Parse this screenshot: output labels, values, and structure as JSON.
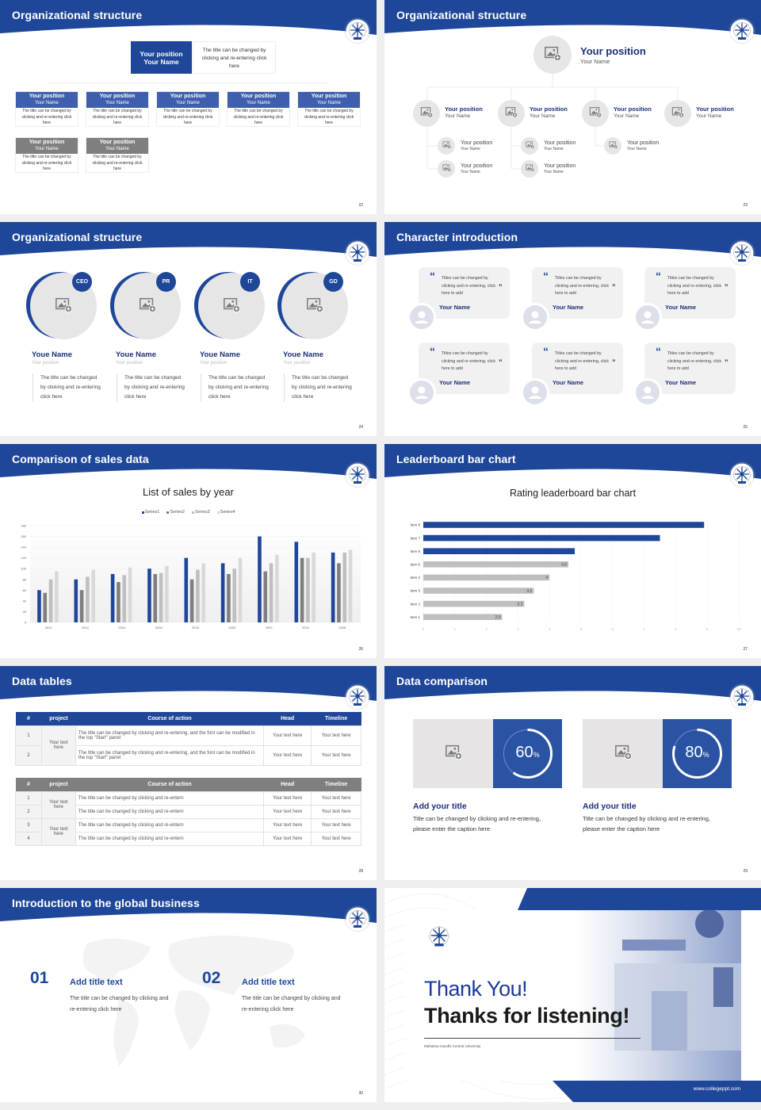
{
  "colors": {
    "brand": "#1f4799",
    "navy_text": "#1b2f7a",
    "gray_header": "#7f7f7f",
    "placeholder": "#e6e6e6",
    "bar_gray": "#bfbfbf"
  },
  "slides": [
    {
      "title": "Organizational structure",
      "page": "22",
      "top": {
        "position": "Your position",
        "name": "Your Name",
        "desc": "The title can be changed by clicking and re-entering click here"
      },
      "cards": [
        {
          "position": "Your position",
          "name": "Your Name",
          "desc": "The title can be changed by clicking and re-entering click here",
          "style": "blue"
        },
        {
          "position": "Your position",
          "name": "Your Name",
          "desc": "The title can be changed by clicking and re-entering click here",
          "style": "blue"
        },
        {
          "position": "Your position",
          "name": "Your Name",
          "desc": "The title can be changed by clicking and re-entering click here",
          "style": "blue"
        },
        {
          "position": "Your position",
          "name": "Your Name",
          "desc": "The title can be changed by clicking and re-entering click here",
          "style": "blue"
        },
        {
          "position": "Your position",
          "name": "Your Name",
          "desc": "The title can be changed by clicking and re-entering click here",
          "style": "blue"
        },
        {
          "position": "Your position",
          "name": "Your Name",
          "desc": "The title can be changed by clicking and re-entering click here",
          "style": "gray"
        },
        {
          "position": "Your position",
          "name": "Your Name",
          "desc": "The title can be changed by clicking and re-entering click here",
          "style": "gray"
        }
      ]
    },
    {
      "title": "Organizational structure",
      "page": "23",
      "top": {
        "position": "Your position",
        "name": "Your Name"
      },
      "level1": [
        {
          "position": "Your position",
          "name": "Your Name"
        },
        {
          "position": "Your position",
          "name": "Your Name"
        },
        {
          "position": "Your position",
          "name": "Your Name"
        },
        {
          "position": "Your position",
          "name": "Your Name"
        }
      ],
      "level2": [
        {
          "position": "Your position",
          "name": "Your Name"
        },
        {
          "position": "Your position",
          "name": "Your Name"
        },
        {
          "position": "Your position",
          "name": "Your Name"
        },
        {
          "position": "Your position",
          "name": "Your Name"
        },
        {
          "position": "Your position",
          "name": "Your Name"
        }
      ]
    },
    {
      "title": "Organizational structure",
      "page": "24",
      "members": [
        {
          "badge": "CEO",
          "name": "Youe Name",
          "position": "Your position",
          "desc": "The title can be changed by clicking and re-entering click here"
        },
        {
          "badge": "PR",
          "name": "Youe Name",
          "position": "Your position",
          "desc": "The title can be changed by clicking and re-entering click here"
        },
        {
          "badge": "IT",
          "name": "Youe Name",
          "position": "Your position",
          "desc": "The title can be changed by clicking and re-entering click here"
        },
        {
          "badge": "GD",
          "name": "Youe Name",
          "position": "Your position",
          "desc": "The title can be changed by clicking and re-entering click here"
        }
      ]
    },
    {
      "title": "Character introduction",
      "page": "25",
      "quotes": [
        {
          "text": "Titles can be changed by clicking and re-entering, click here to add",
          "name": "Your Name"
        },
        {
          "text": "Titles can be changed by clicking and re-entering, click here to add",
          "name": "Your Name"
        },
        {
          "text": "Titles can be changed by clicking and re-entering, click here to add",
          "name": "Your Name"
        },
        {
          "text": "Titles can be changed by clicking and re-entering, click here to add",
          "name": "Your Name"
        },
        {
          "text": "Titles can be changed by clicking and re-entering, click here to add",
          "name": "Your Name"
        },
        {
          "text": "Titles can be changed by clicking and re-entering, click here to add",
          "name": "Your Name"
        }
      ]
    },
    {
      "title": "Comparison of sales data",
      "page": "26"
    },
    {
      "title": "Leaderboard bar chart",
      "page": "27"
    },
    {
      "title": "Data tables",
      "page": "28",
      "table1": {
        "headers": [
          "#",
          "project",
          "Course of action",
          "Head",
          "Timeline"
        ],
        "header_color": "#1f4799",
        "groups": [
          {
            "project": "Your text here",
            "rows": [
              {
                "no": "1",
                "action": "The title can be changed by clicking and re-entering, and the font can be modified in the top \"Start\" panel",
                "head": "Your text here",
                "timeline": "Your text here"
              },
              {
                "no": "2",
                "action": "The title can be changed by clicking and re-entering, and the font can be modified in the top \"Start\" panel",
                "head": "Your text here",
                "timeline": "Your text here"
              }
            ]
          }
        ]
      },
      "table2": {
        "headers": [
          "#",
          "project",
          "Course of action",
          "Head",
          "Timeline"
        ],
        "header_color": "#7f7f7f",
        "groups": [
          {
            "project": "Your text here",
            "rows": [
              {
                "no": "1",
                "action": "The title can be changed by clicking and re-entern",
                "head": "Your text here",
                "timeline": "Your text here"
              },
              {
                "no": "2",
                "action": "The title can be changed by clicking and re-entern",
                "head": "Your text here",
                "timeline": "Your text here"
              }
            ]
          },
          {
            "project": "Your text here",
            "rows": [
              {
                "no": "3",
                "action": "The title can be changed by clicking and re-entern",
                "head": "Your text here",
                "timeline": "Your text here"
              },
              {
                "no": "4",
                "action": "The title can be changed by clicking and re-entern",
                "head": "Your text here",
                "timeline": "Your text here"
              }
            ]
          }
        ]
      }
    },
    {
      "title": "Data comparison",
      "page": "29",
      "items": [
        {
          "percent": 60,
          "unit": "%",
          "title": "Add your title",
          "caption": "Title can be changed by clicking and re-entering, please enter the caption here"
        },
        {
          "percent": 80,
          "unit": "%",
          "title": "Add your title",
          "caption": "Title can be changed by clicking and re-entering, please enter the caption here"
        }
      ]
    },
    {
      "title": "Introduction to the global business",
      "page": "30",
      "items": [
        {
          "num": "01",
          "title": "Add title text",
          "text": "The title can be changed by clicking and re-entering click here"
        },
        {
          "num": "02",
          "title": "Add title text",
          "text": "The title can be changed by clicking and re-entering click here"
        }
      ]
    },
    {
      "thanks": "Thank You!",
      "subtitle": "Thanks for listening!",
      "university": "Mahatma Gandhi Central University",
      "website": "www.collegeppt.com"
    }
  ],
  "chart_data": [
    {
      "type": "bar",
      "title": "List of sales by year",
      "categories": [
        "2010",
        "2012",
        "2014",
        "2016",
        "2018",
        "2020",
        "2022",
        "2024",
        "2026"
      ],
      "series": [
        {
          "name": "Series1",
          "color": "#1f4799",
          "values": [
            60,
            80,
            90,
            100,
            120,
            110,
            160,
            150,
            130
          ]
        },
        {
          "name": "Series2",
          "color": "#7f7f7f",
          "values": [
            55,
            60,
            75,
            90,
            80,
            90,
            95,
            120,
            110
          ]
        },
        {
          "name": "Series3",
          "color": "#bfbfbf",
          "values": [
            80,
            85,
            88,
            92,
            98,
            100,
            110,
            120,
            130
          ]
        },
        {
          "name": "Series4",
          "color": "#d9d9d9",
          "values": [
            95,
            98,
            102,
            105,
            110,
            120,
            126,
            130,
            135
          ]
        }
      ],
      "ylim": [
        0,
        180
      ],
      "yticks": [
        0,
        20,
        40,
        60,
        80,
        100,
        120,
        140,
        160,
        180
      ],
      "legend": "top",
      "grid": true
    },
    {
      "type": "bar",
      "orientation": "horizontal",
      "title": "Rating leaderboard bar chart",
      "categories": [
        "Item 8",
        "Item 7",
        "Item 6",
        "Item 5",
        "Item 4",
        "Item 3",
        "Item 2",
        "Item 1"
      ],
      "values": [
        8.9,
        7.5,
        4.8,
        4.6,
        4,
        3.5,
        3.2,
        2.5
      ],
      "colors": [
        "#1f4799",
        "#1f4799",
        "#1f4799",
        "#bfbfbf",
        "#bfbfbf",
        "#bfbfbf",
        "#bfbfbf",
        "#bfbfbf"
      ],
      "xlim": [
        0,
        10
      ],
      "xticks": [
        0,
        1,
        2,
        3,
        4,
        5,
        6,
        7,
        8,
        9,
        10
      ],
      "grid": true
    }
  ]
}
